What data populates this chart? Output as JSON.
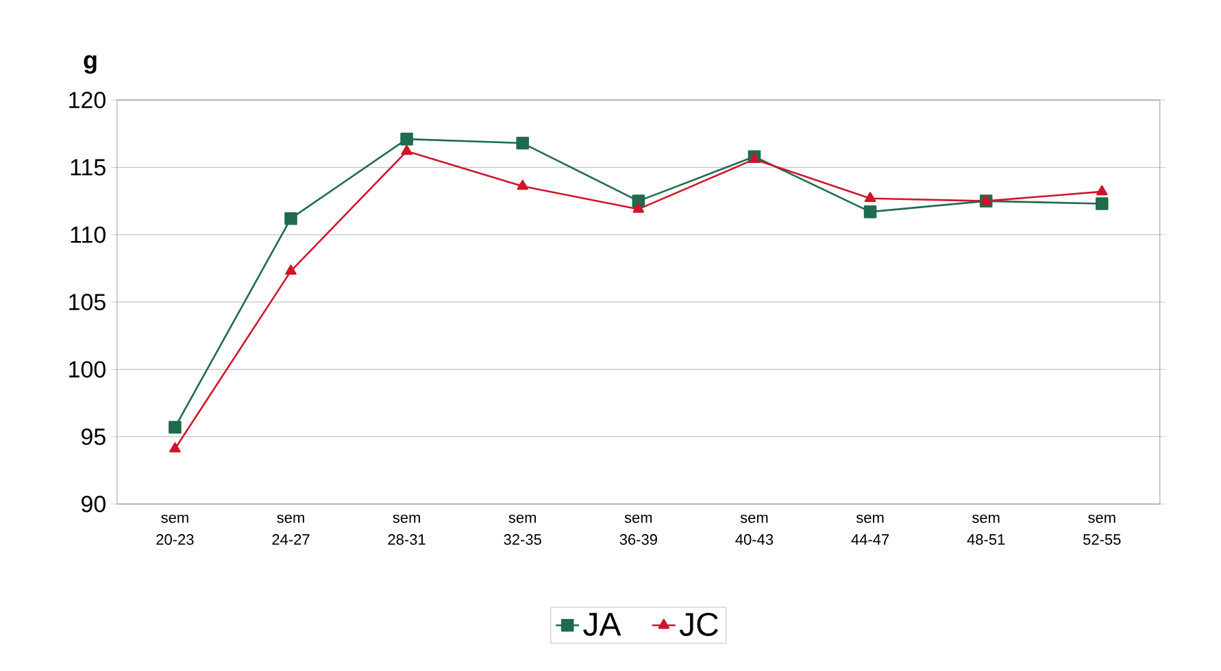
{
  "chart_data": {
    "type": "line",
    "ylabel": "g",
    "categories": [
      "sem 20-23",
      "sem 24-27",
      "sem 28-31",
      "sem 32-35",
      "sem 36-39",
      "sem 40-43",
      "sem 44-47",
      "sem 48-51",
      "sem 52-55"
    ],
    "series": [
      {
        "name": "JA",
        "color": "#1f6b4e",
        "marker": "square",
        "values": [
          95.7,
          111.2,
          117.1,
          116.8,
          112.5,
          115.8,
          111.7,
          112.5,
          112.3
        ]
      },
      {
        "name": "JC",
        "color": "#d0142c",
        "marker": "triangle",
        "values": [
          94.1,
          107.3,
          116.2,
          113.6,
          111.9,
          115.6,
          112.7,
          112.5,
          113.2
        ]
      }
    ],
    "ylim": [
      90,
      120
    ],
    "yticks": [
      90,
      95,
      100,
      105,
      110,
      115,
      120
    ],
    "grid": "y",
    "legend": "bottom",
    "line_style": "solid"
  }
}
